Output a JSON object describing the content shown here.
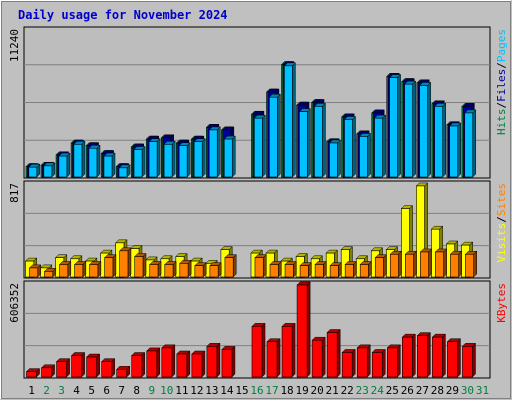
{
  "title": "Daily usage for November 2024",
  "colors": {
    "background": "#c0c0c0",
    "plot_background": "#bdbdbd",
    "title": "#0000cc",
    "hits": "#008040",
    "files": "#0000a0",
    "pages": "#00c0ff",
    "visits": "#ffff00",
    "sites": "#ff8000",
    "kbytes": "#ff0000",
    "weekend_label": "#008040"
  },
  "chart_data": [
    {
      "type": "bar",
      "panel": "hits-files-pages",
      "ymax_label": "11240",
      "ylim": [
        0,
        11240
      ],
      "axis_labels": [
        {
          "text": "Hits",
          "color": "#008040"
        },
        {
          "text": "/",
          "color": "#000000"
        },
        {
          "text": "Files",
          "color": "#0000a0"
        },
        {
          "text": "/",
          "color": "#000000"
        },
        {
          "text": "Pages",
          "color": "#00c0ff"
        }
      ],
      "categories": [
        "1",
        "2",
        "3",
        "4",
        "5",
        "6",
        "7",
        "8",
        "9",
        "10",
        "11",
        "12",
        "13",
        "14",
        "15",
        "16",
        "17",
        "18",
        "19",
        "20",
        "21",
        "22",
        "23",
        "24",
        "25",
        "26",
        "27",
        "28",
        "29",
        "30",
        "31"
      ],
      "series": [
        {
          "name": "Hits",
          "values": [
            800,
            900,
            1700,
            2600,
            2400,
            1800,
            800,
            2300,
            2900,
            3000,
            2600,
            2900,
            3800,
            3600,
            0,
            4800,
            6500,
            8600,
            5500,
            5700,
            2700,
            4600,
            3300,
            4900,
            7700,
            7300,
            7200,
            5600,
            4000,
            5400,
            0
          ]
        },
        {
          "name": "Files",
          "values": [
            800,
            900,
            1700,
            2600,
            2400,
            1800,
            800,
            2300,
            2900,
            3000,
            2600,
            2900,
            3800,
            3600,
            0,
            4800,
            6500,
            8600,
            5500,
            5700,
            2700,
            4600,
            3300,
            4900,
            7700,
            7300,
            7200,
            5600,
            4000,
            5400,
            0
          ]
        },
        {
          "name": "Pages",
          "values": [
            750,
            850,
            1600,
            2500,
            2200,
            1600,
            700,
            2100,
            2700,
            2500,
            2400,
            2700,
            3600,
            2900,
            0,
            4500,
            6100,
            8500,
            5000,
            5400,
            2600,
            4400,
            3100,
            4500,
            7600,
            7100,
            7000,
            5400,
            3900,
            4900,
            0
          ]
        }
      ]
    },
    {
      "type": "bar",
      "panel": "visits-sites",
      "ymax_label": "817",
      "ylim": [
        0,
        817
      ],
      "axis_labels": [
        {
          "text": "Visits",
          "color": "#ffff00"
        },
        {
          "text": "/",
          "color": "#000000"
        },
        {
          "text": "Sites",
          "color": "#ff8000"
        }
      ],
      "categories": [
        "1",
        "2",
        "3",
        "4",
        "5",
        "6",
        "7",
        "8",
        "9",
        "10",
        "11",
        "12",
        "13",
        "14",
        "15",
        "16",
        "17",
        "18",
        "19",
        "20",
        "21",
        "22",
        "23",
        "24",
        "25",
        "26",
        "27",
        "28",
        "29",
        "30",
        "31"
      ],
      "series": [
        {
          "name": "Visits",
          "values": [
            140,
            80,
            170,
            160,
            140,
            210,
            300,
            250,
            150,
            160,
            180,
            140,
            120,
            240,
            0,
            210,
            210,
            140,
            180,
            160,
            210,
            240,
            160,
            230,
            240,
            600,
            800,
            420,
            290,
            280,
            0
          ]
        },
        {
          "name": "Sites",
          "values": [
            80,
            50,
            110,
            110,
            110,
            170,
            230,
            180,
            110,
            110,
            120,
            100,
            100,
            170,
            0,
            170,
            110,
            110,
            100,
            110,
            100,
            110,
            110,
            170,
            200,
            200,
            220,
            220,
            200,
            200,
            0
          ]
        }
      ]
    },
    {
      "type": "bar",
      "panel": "kbytes",
      "ymax_label": "606352",
      "ylim": [
        0,
        606352
      ],
      "axis_labels": [
        {
          "text": "KBytes",
          "color": "#ff0000"
        }
      ],
      "categories": [
        "1",
        "2",
        "3",
        "4",
        "5",
        "6",
        "7",
        "8",
        "9",
        "10",
        "11",
        "12",
        "13",
        "14",
        "15",
        "16",
        "17",
        "18",
        "19",
        "20",
        "21",
        "22",
        "23",
        "24",
        "25",
        "26",
        "27",
        "28",
        "29",
        "30",
        "31"
      ],
      "series": [
        {
          "name": "KBytes",
          "values": [
            35000,
            60000,
            100000,
            140000,
            130000,
            100000,
            50000,
            140000,
            170000,
            190000,
            150000,
            150000,
            200000,
            180000,
            0,
            330000,
            230000,
            330000,
            600000,
            240000,
            290000,
            160000,
            190000,
            160000,
            190000,
            260000,
            270000,
            260000,
            230000,
            200000,
            0
          ]
        }
      ]
    }
  ],
  "day_labels": [
    "1",
    "2",
    "3",
    "4",
    "5",
    "6",
    "7",
    "8",
    "9",
    "10",
    "11",
    "12",
    "13",
    "14",
    "15",
    "16",
    "17",
    "18",
    "19",
    "20",
    "21",
    "22",
    "23",
    "24",
    "25",
    "26",
    "27",
    "28",
    "29",
    "30",
    "31"
  ],
  "weekend_days": [
    "2",
    "3",
    "9",
    "10",
    "16",
    "17",
    "23",
    "24",
    "30",
    "31"
  ]
}
